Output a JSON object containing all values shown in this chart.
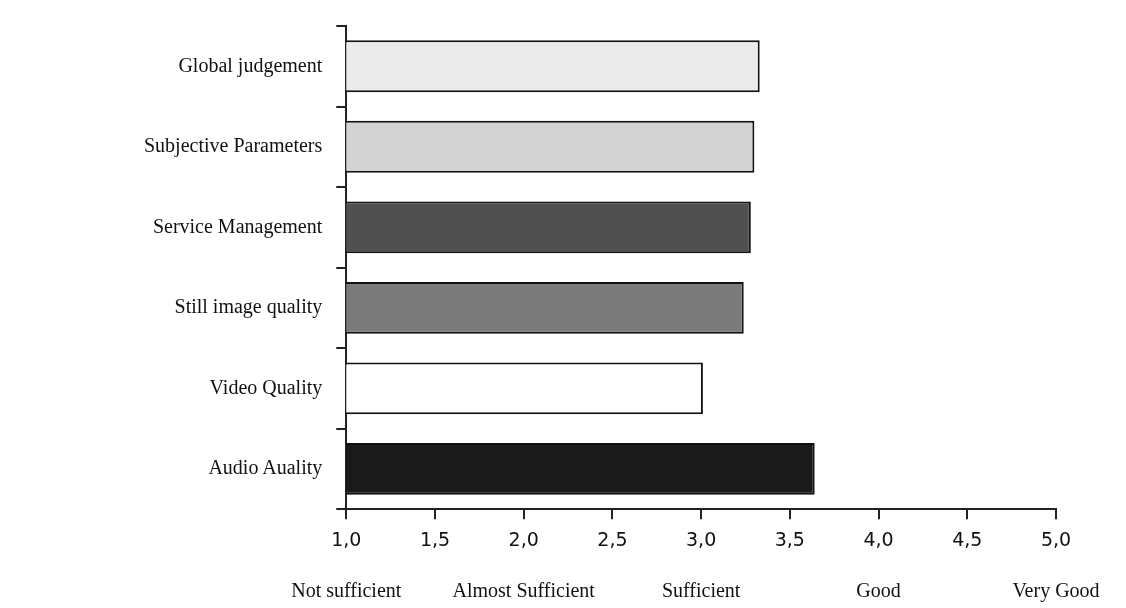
{
  "chart_data": {
    "type": "bar",
    "orientation": "horizontal",
    "categories": [
      "Global judgement",
      "Subjective Parameters",
      "Service Management",
      "Still image quality",
      "Video Quality",
      "Audio Auality"
    ],
    "values": [
      3.33,
      3.3,
      3.28,
      3.24,
      3.01,
      3.64
    ],
    "colors": [
      "#ebebeb",
      "#d2d2d2",
      "#505050",
      "#7a7a7a",
      "#ffffff",
      "#1a1a1a"
    ],
    "xlim": [
      1,
      5
    ],
    "xticks": [
      {
        "value": 1,
        "label": "1,0"
      },
      {
        "value": 1.5,
        "label": "1,5"
      },
      {
        "value": 2,
        "label": "2,0"
      },
      {
        "value": 2.5,
        "label": "2,5"
      },
      {
        "value": 3,
        "label": "3,0"
      },
      {
        "value": 3.5,
        "label": "3,5"
      },
      {
        "value": 4,
        "label": "4,0"
      },
      {
        "value": 4.5,
        "label": "4,5"
      },
      {
        "value": 5,
        "label": "5,0"
      }
    ],
    "annotations": [
      "Not sufficient",
      "Almost Sufficient",
      "Sufficient",
      "Good",
      "Very Good"
    ],
    "grid": false,
    "legend": false
  }
}
